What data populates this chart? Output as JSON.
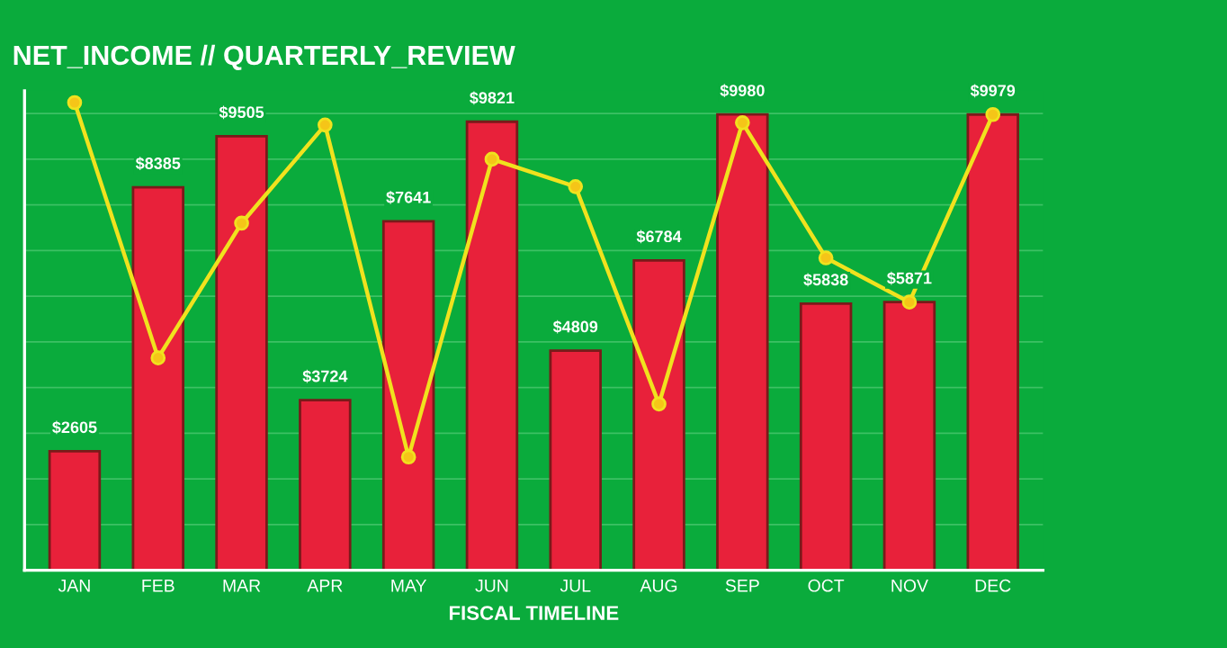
{
  "chart_data": {
    "type": "bar",
    "title": "NET_INCOME // QUARTERLY_REVIEW",
    "xlabel": "FISCAL TIMELINE",
    "categories": [
      "JAN",
      "FEB",
      "MAR",
      "APR",
      "MAY",
      "JUN",
      "JUL",
      "AUG",
      "SEP",
      "OCT",
      "NOV",
      "DEC"
    ],
    "series": [
      {
        "color": "#e8213a",
        "values": [
          2605,
          8385,
          9505,
          3724,
          7641,
          9821,
          4809,
          6784,
          9980,
          5838,
          5871,
          9979
        ],
        "value_labels": [
          "$2605",
          "$8385",
          "$9505",
          "$3724",
          "$7641",
          "$9821",
          "$4809",
          "$6784",
          "$9980",
          "$5838",
          "$5871",
          "$9979"
        ]
      },
      {
        "type": "line",
        "color": "#f0e21e",
        "marker": "circle",
        "values": [
          10240,
          4650,
          7600,
          9750,
          2480,
          9000,
          8400,
          3640,
          9800,
          6840,
          5871,
          9979
        ]
      }
    ],
    "ylim": [
      0,
      10500
    ],
    "yticks": [
      {
        "value": 0,
        "label": null
      },
      {
        "value": 1000,
        "label": null
      },
      {
        "value": 2000,
        "label": null
      },
      {
        "value": 3000,
        "label": null
      },
      {
        "value": 4000,
        "label": null
      },
      {
        "value": 5000,
        "label": null
      },
      {
        "value": 6000,
        "label": null
      },
      {
        "value": 7000,
        "label": null
      },
      {
        "value": 8000,
        "label": null
      },
      {
        "value": 9000,
        "label": null
      },
      {
        "value": 10000,
        "label": null
      }
    ],
    "tick_labels": "x",
    "grid": "y"
  }
}
